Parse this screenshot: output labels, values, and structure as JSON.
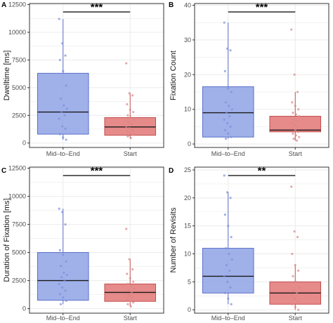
{
  "colors": {
    "mid_fill": "#8FA3E6",
    "mid_stroke": "#5A6FC9",
    "mid_points": "#7A8FD8",
    "start_fill": "#E27575",
    "start_stroke": "#C44E4E",
    "start_points": "#D88787",
    "grid": "#EBEBEB",
    "border": "#333333",
    "median": "#1a1a1a"
  },
  "chart_data": [
    {
      "panel": "A",
      "type": "boxplot",
      "ylabel": "Dwelltime [ms]",
      "categories": [
        "Mid–to–End",
        "Start"
      ],
      "ylim": [
        -400,
        12600
      ],
      "yticks": [
        0,
        2500,
        5000,
        7500,
        10000,
        12500
      ],
      "grid": true,
      "significance": "***",
      "boxes": [
        {
          "category": "Mid–to–End",
          "q1": 800,
          "median": 2800,
          "q3": 6300,
          "whisker_low": 300,
          "whisker_high": 11200,
          "points": [
            11200,
            9000,
            7900,
            7500,
            6500,
            5200,
            4000,
            3400,
            3100,
            2800,
            2500,
            2200,
            1500,
            1300,
            800,
            500,
            300
          ]
        },
        {
          "category": "Start",
          "q1": 700,
          "median": 1450,
          "q3": 2300,
          "whisker_low": 400,
          "whisker_high": 4500,
          "points": [
            7200,
            4500,
            4300,
            3500,
            3000,
            2800,
            2500,
            2300,
            2100,
            1900,
            1700,
            1500,
            1350,
            1200,
            1050,
            900,
            750,
            600,
            450
          ]
        }
      ]
    },
    {
      "panel": "B",
      "type": "boxplot",
      "ylabel": "Fixation Count",
      "categories": [
        "Mid–to–End",
        "Start"
      ],
      "ylim": [
        -1,
        40.5
      ],
      "yticks": [
        0,
        10,
        20,
        30,
        40
      ],
      "grid": true,
      "significance": "***",
      "boxes": [
        {
          "category": "Mid–to–End",
          "q1": 2,
          "median": 9,
          "q3": 16.5,
          "whisker_low": 1.5,
          "whisker_high": 35,
          "points": [
            35,
            27.5,
            27,
            21,
            16,
            15,
            12,
            11,
            10,
            9,
            8,
            7,
            6,
            5,
            4,
            3,
            2,
            1.5
          ]
        },
        {
          "category": "Start",
          "q1": 3.5,
          "median": 4,
          "q3": 8,
          "whisker_low": 1,
          "whisker_high": 15,
          "points": [
            33,
            20,
            15,
            12,
            11,
            10,
            9,
            8.5,
            8,
            7,
            6.5,
            6,
            5.5,
            5,
            4.5,
            4,
            3.5,
            3,
            2.5,
            2,
            1.5,
            1
          ]
        }
      ]
    },
    {
      "panel": "C",
      "type": "boxplot",
      "ylabel": "Duration of Fixation [ms]",
      "categories": [
        "Mid–to–End",
        "Start"
      ],
      "ylim": [
        -400,
        12600
      ],
      "yticks": [
        0,
        2500,
        5000,
        7500,
        10000,
        12500
      ],
      "grid": true,
      "significance": "***",
      "boxes": [
        {
          "category": "Mid–to–End",
          "q1": 750,
          "median": 2500,
          "q3": 5000,
          "whisker_low": 400,
          "whisker_high": 8900,
          "points": [
            8900,
            8600,
            7500,
            5200,
            4800,
            4200,
            3800,
            3200,
            3000,
            2800,
            2500,
            2200,
            1900,
            1600,
            1300,
            1000,
            700,
            400
          ]
        },
        {
          "category": "Start",
          "q1": 650,
          "median": 1450,
          "q3": 2200,
          "whisker_low": 200,
          "whisker_high": 4400,
          "points": [
            7100,
            4400,
            3500,
            3100,
            2700,
            2400,
            2200,
            2000,
            1800,
            1600,
            1450,
            1300,
            1150,
            1000,
            850,
            700,
            550,
            400,
            200
          ]
        }
      ]
    },
    {
      "panel": "D",
      "type": "boxplot",
      "ylabel": "Number of Revisits",
      "categories": [
        "Mid–to–End",
        "Start"
      ],
      "ylim": [
        -0.6,
        25.5
      ],
      "yticks": [
        0,
        5,
        10,
        15,
        20,
        25
      ],
      "grid": true,
      "significance": "**",
      "boxes": [
        {
          "category": "Mid–to–End",
          "q1": 3,
          "median": 6,
          "q3": 11,
          "whisker_low": 1,
          "whisker_high": 21,
          "points": [
            24,
            21,
            20,
            17,
            15,
            13,
            11,
            10,
            9,
            8,
            7,
            6,
            5,
            4,
            3,
            2,
            1
          ]
        },
        {
          "category": "Start",
          "q1": 1,
          "median": 3,
          "q3": 5,
          "whisker_low": 0,
          "whisker_high": 8,
          "points": [
            22,
            14,
            13,
            10,
            8,
            7,
            6,
            5,
            4,
            3.5,
            3,
            2.5,
            2,
            1.5,
            1,
            0.5,
            0
          ]
        }
      ]
    }
  ]
}
